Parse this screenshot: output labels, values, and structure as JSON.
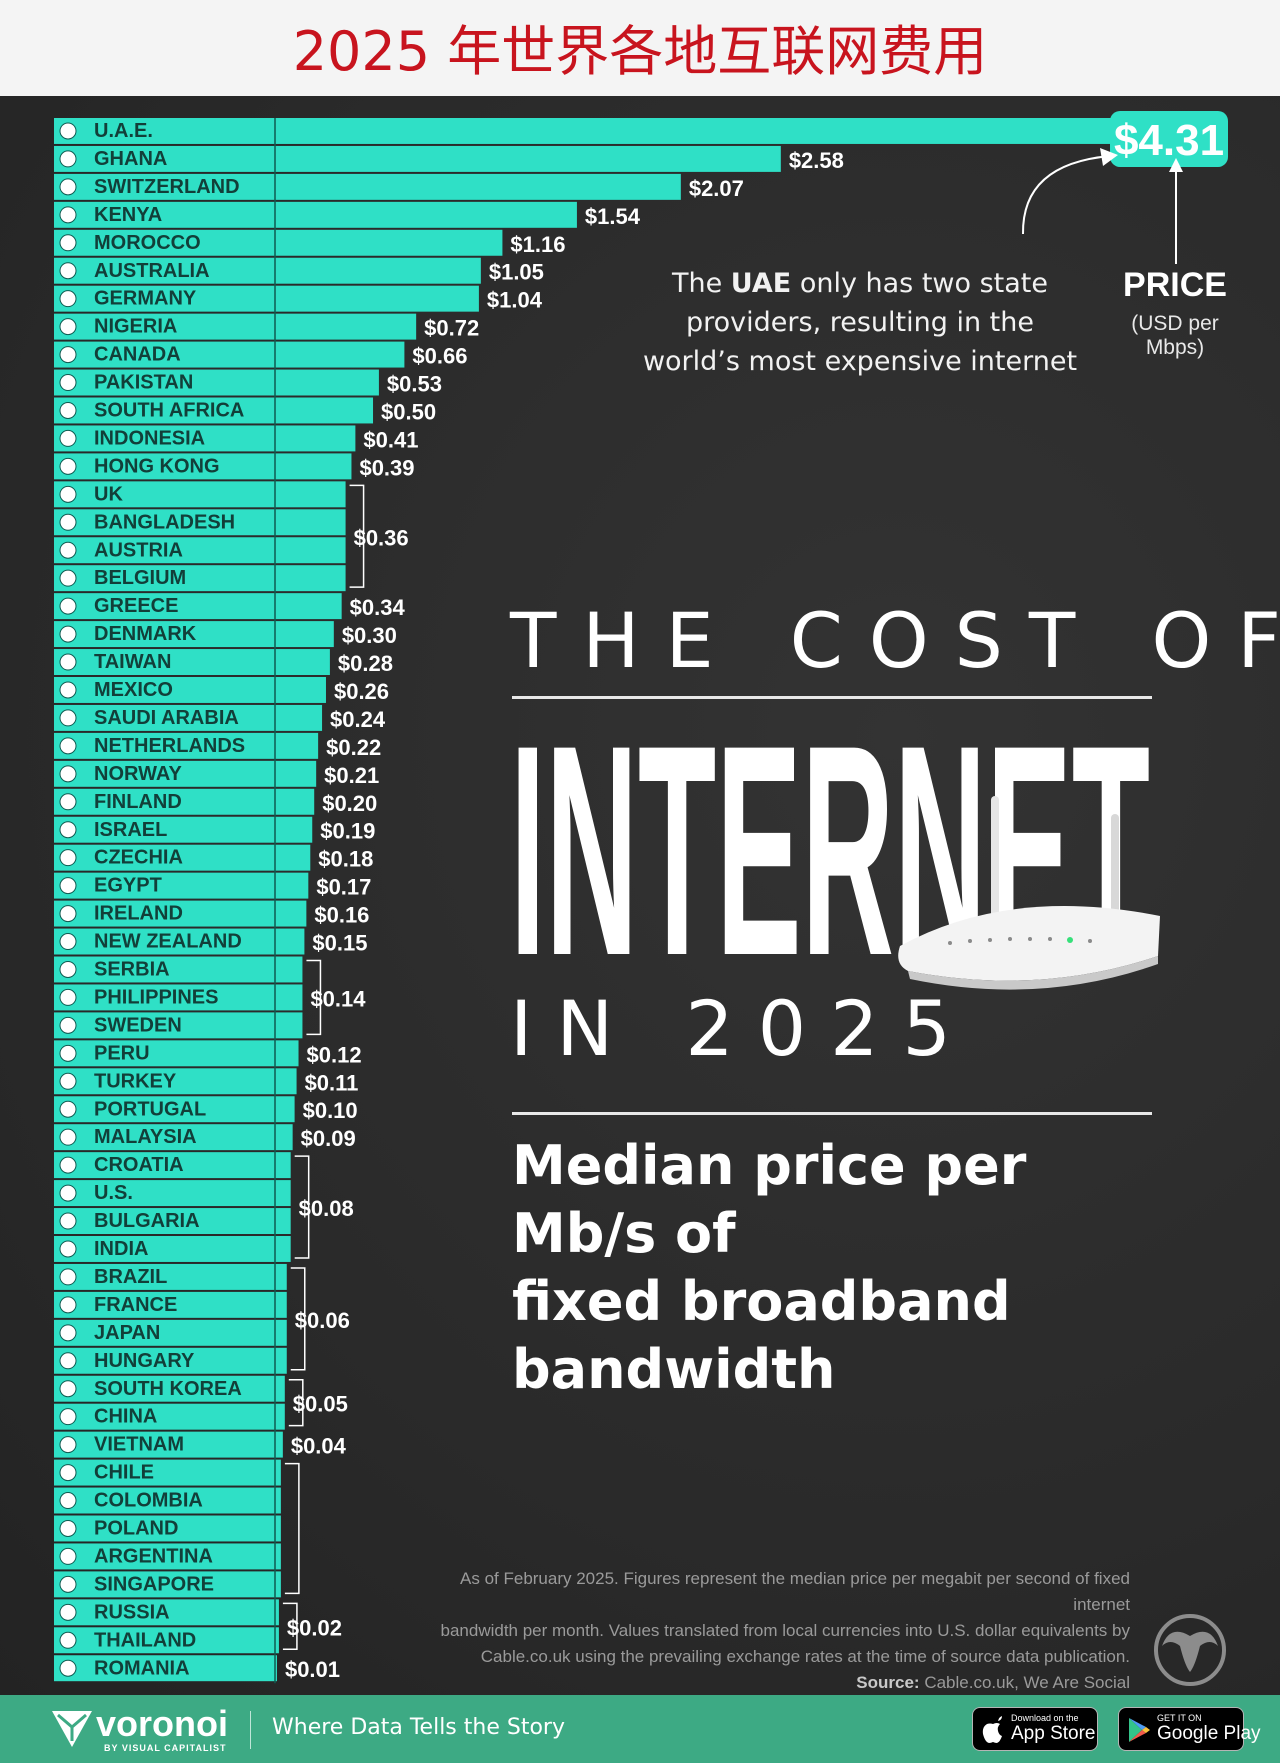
{
  "header": {
    "title": "2025 年世界各地互联网费用"
  },
  "poster": {
    "title_line1": "THE COST OF",
    "title_line2": "INTERNET",
    "title_line3": "IN 2025",
    "subtitle_line1": "Median price per Mb/s of",
    "subtitle_line2": "fixed broadband bandwidth",
    "callout_pre": "The ",
    "callout_bold": "UAE",
    "callout_post": " only has two state providers, resulting in the world’s most expensive internet",
    "price_label": "PRICE",
    "price_unit": "(USD per Mbps)",
    "note_line1": "As of February 2025. Figures represent the median price per megabit per second of fixed internet",
    "note_line2": "bandwidth per month. Values translated from local currencies into U.S. dollar equivalents by",
    "note_line3": "Cable.co.uk using the prevailing exchange rates at the time of source data publication.",
    "source_label": "Source:",
    "source_text": " Cable.co.uk, We Are Social"
  },
  "footer": {
    "brand": "voronoi",
    "brand_by": "BY VISUAL CAPITALIST",
    "tagline": "Where Data Tells the Story",
    "appstore_small": "Download on the",
    "appstore_big": "App Store",
    "googleplay_small": "GET IT ON",
    "googleplay_big": "Google Play"
  },
  "chart_data": {
    "type": "bar",
    "orientation": "horizontal",
    "title": "The Cost of Internet in 2025",
    "subtitle": "Median price per Mb/s of fixed broadband bandwidth",
    "unit": "USD per Mbps",
    "xlim": [
      0,
      4.31
    ],
    "bar_color": "#2fe0c6",
    "categories": [
      "U.A.E.",
      "GHANA",
      "SWITZERLAND",
      "KENYA",
      "MOROCCO",
      "AUSTRALIA",
      "GERMANY",
      "NIGERIA",
      "CANADA",
      "PAKISTAN",
      "SOUTH AFRICA",
      "INDONESIA",
      "HONG KONG",
      "UK",
      "BANGLADESH",
      "AUSTRIA",
      "BELGIUM",
      "GREECE",
      "DENMARK",
      "TAIWAN",
      "MEXICO",
      "SAUDI ARABIA",
      "NETHERLANDS",
      "NORWAY",
      "FINLAND",
      "ISRAEL",
      "CZECHIA",
      "EGYPT",
      "IRELAND",
      "NEW ZEALAND",
      "SERBIA",
      "PHILIPPINES",
      "SWEDEN",
      "PERU",
      "TURKEY",
      "PORTUGAL",
      "MALAYSIA",
      "CROATIA",
      "U.S.",
      "BULGARIA",
      "INDIA",
      "BRAZIL",
      "FRANCE",
      "JAPAN",
      "HUNGARY",
      "SOUTH KOREA",
      "CHINA",
      "VIETNAM",
      "CHILE",
      "COLOMBIA",
      "POLAND",
      "ARGENTINA",
      "SINGAPORE",
      "RUSSIA",
      "THAILAND",
      "ROMANIA"
    ],
    "values": [
      4.31,
      2.58,
      2.07,
      1.54,
      1.16,
      1.05,
      1.04,
      0.72,
      0.66,
      0.53,
      0.5,
      0.41,
      0.39,
      0.36,
      0.36,
      0.36,
      0.36,
      0.34,
      0.3,
      0.28,
      0.26,
      0.24,
      0.22,
      0.21,
      0.2,
      0.19,
      0.18,
      0.17,
      0.16,
      0.15,
      0.14,
      0.14,
      0.14,
      0.12,
      0.11,
      0.1,
      0.09,
      0.08,
      0.08,
      0.08,
      0.08,
      0.06,
      0.06,
      0.06,
      0.06,
      0.05,
      0.05,
      0.04,
      0.03,
      0.03,
      0.03,
      0.03,
      0.03,
      0.02,
      0.02,
      0.01
    ],
    "value_labels": [
      {
        "text": "$4.31",
        "rows": [
          0
        ],
        "highlight": true
      },
      {
        "text": "$2.58",
        "rows": [
          1
        ]
      },
      {
        "text": "$2.07",
        "rows": [
          2
        ]
      },
      {
        "text": "$1.54",
        "rows": [
          3
        ]
      },
      {
        "text": "$1.16",
        "rows": [
          4
        ]
      },
      {
        "text": "$1.05",
        "rows": [
          5
        ]
      },
      {
        "text": "$1.04",
        "rows": [
          6
        ]
      },
      {
        "text": "$0.72",
        "rows": [
          7
        ]
      },
      {
        "text": "$0.66",
        "rows": [
          8
        ]
      },
      {
        "text": "$0.53",
        "rows": [
          9
        ]
      },
      {
        "text": "$0.50",
        "rows": [
          10
        ]
      },
      {
        "text": "$0.41",
        "rows": [
          11
        ]
      },
      {
        "text": "$0.39",
        "rows": [
          12
        ]
      },
      {
        "text": "$0.36",
        "rows": [
          13,
          16
        ]
      },
      {
        "text": "$0.34",
        "rows": [
          17
        ]
      },
      {
        "text": "$0.30",
        "rows": [
          18
        ]
      },
      {
        "text": "$0.28",
        "rows": [
          19
        ]
      },
      {
        "text": "$0.26",
        "rows": [
          20
        ]
      },
      {
        "text": "$0.24",
        "rows": [
          21
        ]
      },
      {
        "text": "$0.22",
        "rows": [
          22
        ]
      },
      {
        "text": "$0.21",
        "rows": [
          23
        ]
      },
      {
        "text": "$0.20",
        "rows": [
          24
        ]
      },
      {
        "text": "$0.19",
        "rows": [
          25
        ]
      },
      {
        "text": "$0.18",
        "rows": [
          26
        ]
      },
      {
        "text": "$0.17",
        "rows": [
          27
        ]
      },
      {
        "text": "$0.16",
        "rows": [
          28
        ]
      },
      {
        "text": "$0.15",
        "rows": [
          29
        ]
      },
      {
        "text": "$0.14",
        "rows": [
          30,
          32
        ]
      },
      {
        "text": "$0.12",
        "rows": [
          33
        ]
      },
      {
        "text": "$0.11",
        "rows": [
          34
        ]
      },
      {
        "text": "$0.10",
        "rows": [
          35
        ]
      },
      {
        "text": "$0.09",
        "rows": [
          36
        ]
      },
      {
        "text": "$0.08",
        "rows": [
          37,
          40
        ]
      },
      {
        "text": "$0.06",
        "rows": [
          41,
          44
        ]
      },
      {
        "text": "$0.05",
        "rows": [
          45,
          46
        ]
      },
      {
        "text": "$0.04",
        "rows": [
          47
        ]
      },
      {
        "text": "",
        "rows": [
          48,
          52
        ]
      },
      {
        "text": "$0.02",
        "rows": [
          53,
          54
        ]
      },
      {
        "text": "$0.01",
        "rows": [
          55
        ]
      }
    ]
  },
  "colors": {
    "bar": "#2fe0c6",
    "label_text": "#123f39",
    "background": "#2b2b2b",
    "footer": "#3daa84",
    "header_text": "#c8141e"
  }
}
